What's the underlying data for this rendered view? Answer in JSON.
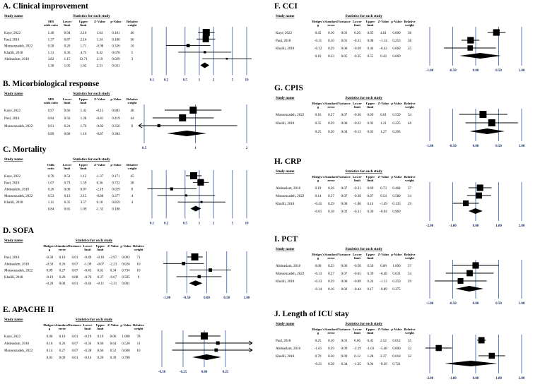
{
  "chart_data": [
    {
      "type": "forest",
      "title": "A. Clinical improvement",
      "hdr": {
        "study": "Study name",
        "stats": "Statistics for each study"
      },
      "columns": [
        "MH\nodds ratio",
        "Lower\nlimit",
        "Upper\nlimit",
        "Z-Value",
        "p-Value",
        "Relative\nweight"
      ],
      "rows": [
        {
          "study": "Kaye, 2022",
          "values": [
            "1.40",
            "0.94",
            "2.10",
            "1.64",
            "0.101",
            "46"
          ],
          "est": 1.4,
          "lo": 0.94,
          "hi": 2.1
        },
        {
          "study": "Paul, 2018",
          "values": [
            "1.37",
            "0.87",
            "2.16",
            "1.34",
            "0.180",
            "36"
          ],
          "est": 1.37,
          "lo": 0.87,
          "hi": 2.16
        },
        {
          "study": "Monsenzadeh, 2022",
          "values": [
            "0.58",
            "0.20",
            "1.71",
            "-0.98",
            "0.326",
            "10"
          ],
          "est": 0.58,
          "lo": 0.2,
          "hi": 1.71
        },
        {
          "study": "Khalili, 2018",
          "values": [
            "1.31",
            "0.36",
            "4.73",
            "0.42",
            "0.678",
            "5"
          ],
          "est": 1.31,
          "lo": 0.36,
          "hi": 4.73
        },
        {
          "study": "Abdeaslam, 2018",
          "values": [
            "3.82",
            "1.15",
            "12.71",
            "2.19",
            "0.029",
            "3"
          ],
          "est": 3.82,
          "lo": 1.15,
          "hi": 12.71
        }
      ],
      "pooled": {
        "values": [
          "1.30",
          "1.05",
          "1.62",
          "2.31",
          "0.021",
          ""
        ],
        "est": 1.3,
        "lo": 1.05,
        "hi": 1.62
      },
      "axis": {
        "log": true,
        "min": 0.1,
        "max": 10,
        "ticks": [
          0.1,
          0.2,
          0.5,
          1,
          2,
          5,
          10
        ],
        "tick_labels": [
          "0.1",
          "0.2",
          "0.5",
          "1",
          "2",
          "5",
          "10"
        ]
      }
    },
    {
      "type": "forest",
      "title": "B. Micorbiological response",
      "hdr": {
        "study": "Study name",
        "stats": "Statistics for each study"
      },
      "columns": [
        "MH\nodds ratio",
        "Lower\nlimit",
        "Upper\nlimit",
        "Z-Value",
        "p-Value",
        "Relative\nweight"
      ],
      "rows": [
        {
          "study": "Kaye, 2022",
          "values": [
            "0.97",
            "0.66",
            "1.42",
            "-0.15",
            "0.883",
            "48"
          ],
          "est": 0.97,
          "lo": 0.66,
          "hi": 1.42
        },
        {
          "study": "Paul, 2018",
          "values": [
            "0.84",
            "0.56",
            "1.28",
            "-0.81",
            "0.419",
            "44"
          ],
          "est": 0.84,
          "lo": 0.56,
          "hi": 1.28
        },
        {
          "study": "Monsenzadeh, 2022",
          "values": [
            "0.61",
            "0.21",
            "1.76",
            "-0.92",
            "0.356",
            "8"
          ],
          "est": 0.61,
          "lo": 0.21,
          "hi": 1.76
        }
      ],
      "pooled": {
        "values": [
          "0.89",
          "0.68",
          "1.16",
          "-0.87",
          "0.384",
          ""
        ],
        "est": 0.89,
        "lo": 0.68,
        "hi": 1.16
      },
      "axis": {
        "log": true,
        "min": 0.5,
        "max": 2,
        "ticks": [
          0.5,
          1,
          2
        ],
        "tick_labels": [
          "0.5",
          "1",
          "2"
        ]
      }
    },
    {
      "type": "forest",
      "title": "C. Mortality",
      "hdr": {
        "study": "Study name",
        "stats": "Statistics for each study"
      },
      "columns": [
        "Odds\nratio",
        "Lower\nlimit",
        "Upper\nlimit",
        "Z-Value",
        "p-Value",
        "Relative\nweight"
      ],
      "rows": [
        {
          "study": "Kaye, 2022",
          "values": [
            "0.76",
            "0.52",
            "1.12",
            "-1.37",
            "0.171",
            "45"
          ],
          "est": 0.76,
          "lo": 0.52,
          "hi": 1.12
        },
        {
          "study": "Paul, 2018",
          "values": [
            "1.07",
            "0.73",
            "1.59",
            "0.36",
            "0.722",
            "38"
          ],
          "est": 1.07,
          "lo": 0.73,
          "hi": 1.59
        },
        {
          "study": "Abdeaslam, 2018",
          "values": [
            "0.26",
            "0.08",
            "0.87",
            "-2.19",
            "0.029",
            "8"
          ],
          "est": 0.26,
          "lo": 0.08,
          "hi": 0.87
        },
        {
          "study": "Monsenzadeh, 2022",
          "values": [
            "0.53",
            "0.13",
            "2.15",
            "-0.88",
            "0.377",
            "4"
          ],
          "est": 0.53,
          "lo": 0.13,
          "hi": 2.15
        },
        {
          "study": "Khalili, 2018",
          "values": [
            "1.11",
            "0.35",
            "3.57",
            "0.18",
            "0.859",
            "4"
          ],
          "est": 1.11,
          "lo": 0.35,
          "hi": 3.57
        }
      ],
      "pooled": {
        "values": [
          "0.84",
          "0.65",
          "1.09",
          "-1.32",
          "0.188",
          ""
        ],
        "est": 0.84,
        "lo": 0.65,
        "hi": 1.09
      },
      "axis": {
        "log": true,
        "min": 0.1,
        "max": 10,
        "ticks": [
          0.1,
          0.2,
          0.5,
          1,
          2,
          5,
          10
        ],
        "tick_labels": [
          "0.1",
          "0.2",
          "0.5",
          "1",
          "2",
          "5",
          "10"
        ]
      }
    },
    {
      "type": "forest",
      "title": "D. SOFA",
      "hdr": {
        "study": "Study name",
        "stats": "Statistics for each study"
      },
      "columns": [
        "Hedges's\ng",
        "Standard\nerror",
        "Variance",
        "Lower\nlimit",
        "Upper\nlimit",
        "Z-Value",
        "p-Value",
        "Relative\nweight"
      ],
      "rows": [
        {
          "study": "Paul, 2018",
          "values": [
            "-0.30",
            "0.10",
            "0.01",
            "-0.49",
            "-0.10",
            "-2.97",
            "0.003",
            "71"
          ],
          "est": -0.3,
          "lo": -0.49,
          "hi": -0.1
        },
        {
          "study": "Abdeaslam, 2018",
          "values": [
            "-0.58",
            "0.26",
            "0.07",
            "-1.09",
            "-0.07",
            "-2.23",
            "0.026",
            "10"
          ],
          "est": -0.58,
          "lo": -1.09,
          "hi": -0.07
        },
        {
          "study": "Monsenzadeh, 2022",
          "values": [
            "0.09",
            "0.27",
            "0.07",
            "-0.43",
            "0.61",
            "0.34",
            "0.734",
            "10"
          ],
          "est": 0.09,
          "lo": -0.43,
          "hi": 0.61
        },
        {
          "study": "Khalili, 2018",
          "values": [
            "-0.19",
            "0.29",
            "0.08",
            "-0.76",
            "0.37",
            "-0.67",
            "0.505",
            "9"
          ],
          "est": -0.19,
          "lo": -0.76,
          "hi": 0.37
        }
      ],
      "pooled": {
        "values": [
          "-0.28",
          "0.08",
          "0.01",
          "-0.44",
          "-0.11",
          "-3.31",
          "0.001",
          ""
        ],
        "est": -0.28,
        "lo": -0.44,
        "hi": -0.11
      },
      "axis": {
        "log": false,
        "min": -1,
        "max": 1,
        "ticks": [
          -1,
          -0.5,
          0,
          0.5,
          1
        ],
        "tick_labels": [
          "-1.00",
          "-0.50",
          "0.00",
          "0.50",
          "1.00"
        ]
      }
    },
    {
      "type": "forest",
      "title": "E. APACHE II",
      "hdr": {
        "study": "Study name",
        "stats": "Statistics for each study"
      },
      "columns": [
        "Hedges's\ng",
        "Standard\nerror",
        "Variance",
        "Lower\nlimit",
        "Upper\nlimit",
        "Z-Value",
        "p-Value",
        "Relative\nweight"
      ],
      "rows": [
        {
          "study": "Kaye, 2022",
          "values": [
            "0.00",
            "0.10",
            "0.01",
            "-0.19",
            "0.19",
            "0.00",
            "1.000",
            "78"
          ],
          "est": 0.0,
          "lo": -0.19,
          "hi": 0.19
        },
        {
          "study": "Abdeaslam, 2018",
          "values": [
            "0.16",
            "0.26",
            "0.07",
            "-0.34",
            "0.66",
            "0.64",
            "0.520",
            "11"
          ],
          "est": 0.16,
          "lo": -0.34,
          "hi": 0.66
        },
        {
          "study": "Monsenzadeh, 2022",
          "values": [
            "0.14",
            "0.27",
            "0.07",
            "-0.38",
            "0.66",
            "0.52",
            "0.600",
            "10"
          ],
          "est": 0.14,
          "lo": -0.38,
          "hi": 0.66
        }
      ],
      "pooled": {
        "values": [
          "0.03",
          "0.09",
          "0.01",
          "-0.14",
          "0.20",
          "0.39",
          "0.700",
          ""
        ],
        "est": 0.03,
        "lo": -0.14,
        "hi": 0.2
      },
      "axis": {
        "log": false,
        "min": -0.5,
        "max": 0.5,
        "ticks": [
          -0.5,
          -0.25,
          0,
          0.25
        ],
        "tick_labels": [
          "-0.50",
          "-0.25",
          "0.00",
          "0.25"
        ]
      }
    },
    {
      "type": "forest",
      "title": "F. CCI",
      "hdr": {
        "study": "Study name",
        "stats": "Statistics for each study"
      },
      "columns": [
        "Hedges's\ng",
        "Standard\nerror",
        "Variance",
        "Lower\nlimit",
        "Upper\nlimit",
        "Z-Value",
        "p-Value",
        "Relative\nweight"
      ],
      "rows": [
        {
          "study": "Kaye, 2022",
          "values": [
            "0.45",
            "0.10",
            "0.01",
            "0.26",
            "0.65",
            "4.61",
            "0.000",
            "38"
          ],
          "est": 0.45,
          "lo": 0.26,
          "hi": 0.65
        },
        {
          "study": "Paul, 2018",
          "values": [
            "-0.11",
            "0.10",
            "0.01",
            "-0.31",
            "0.08",
            "-1.14",
            "0.253",
            "38"
          ],
          "est": -0.11,
          "lo": -0.31,
          "hi": 0.08
        },
        {
          "study": "Khalili, 2018",
          "values": [
            "-0.12",
            "0.29",
            "0.08",
            "-0.69",
            "0.44",
            "-0.43",
            "0.669",
            "25"
          ],
          "est": -0.12,
          "lo": -0.69,
          "hi": 0.44
        }
      ],
      "pooled": {
        "values": [
          "0.10",
          "0.23",
          "0.05",
          "-0.35",
          "0.55",
          "0.43",
          "0.669",
          ""
        ],
        "est": 0.1,
        "lo": -0.35,
        "hi": 0.55
      },
      "axis": {
        "log": false,
        "min": -1,
        "max": 1,
        "ticks": [
          -1,
          -0.5,
          0,
          0.5,
          1
        ],
        "tick_labels": [
          "-1.00",
          "-0.50",
          "0.00",
          "0.50",
          "1.00"
        ]
      }
    },
    {
      "type": "forest",
      "title": "G. CPIS",
      "hdr": {
        "study": "Study name",
        "stats": "Statistics for each study"
      },
      "columns": [
        "Hedges's\ng",
        "Standard\nerror",
        "Variance",
        "Lower\nlimit",
        "Upper\nlimit",
        "Z-Value",
        "p-Value",
        "Relative\nweight"
      ],
      "rows": [
        {
          "study": "Monsenzadeh, 2022",
          "values": [
            "0.16",
            "0.27",
            "0.07",
            "-0.36",
            "0.69",
            "0.61",
            "0.539",
            "54"
          ],
          "est": 0.16,
          "lo": -0.36,
          "hi": 0.69
        },
        {
          "study": "Khalili, 2018",
          "values": [
            "0.35",
            "0.29",
            "0.08",
            "-0.22",
            "0.92",
            "1.21",
            "0.225",
            "46"
          ],
          "est": 0.35,
          "lo": -0.22,
          "hi": 0.92
        }
      ],
      "pooled": {
        "values": [
          "0.25",
          "0.20",
          "0.04",
          "-0.13",
          "0.63",
          "1.27",
          "0.203",
          ""
        ],
        "est": 0.25,
        "lo": -0.13,
        "hi": 0.63
      },
      "axis": {
        "log": false,
        "min": -1,
        "max": 1,
        "ticks": [
          -1,
          -0.5,
          0,
          0.5,
          1
        ],
        "tick_labels": [
          "-1.00",
          "-0.50",
          "0.00",
          "0.50",
          "1.00"
        ]
      }
    },
    {
      "type": "forest",
      "title": "H. CRP",
      "hdr": {
        "study": "Study name",
        "stats": "Statistics for each study"
      },
      "columns": [
        "Hedges's\ng",
        "Standard\nerror",
        "Variance",
        "Lower\nlimit",
        "Upper\nlimit",
        "Z-Value",
        "p-Value",
        "Relative\nweight"
      ],
      "rows": [
        {
          "study": "Abdeaslam, 2018",
          "values": [
            "0.19",
            "0.26",
            "0.07",
            "-0.31",
            "0.69",
            "0.73",
            "0.464",
            "37"
          ],
          "est": 0.19,
          "lo": -0.31,
          "hi": 0.69
        },
        {
          "study": "Monsenzadeh, 2022",
          "values": [
            "0.14",
            "0.27",
            "0.07",
            "-0.38",
            "0.67",
            "0.54",
            "0.589",
            "34"
          ],
          "est": 0.14,
          "lo": -0.38,
          "hi": 0.67
        },
        {
          "study": "Khalili, 2018",
          "values": [
            "-0.43",
            "0.29",
            "0.08",
            "-1.00",
            "0.14",
            "-1.49",
            "0.135",
            "29"
          ],
          "est": -0.43,
          "lo": -1.0,
          "hi": 0.14
        }
      ],
      "pooled": {
        "values": [
          "-0.01",
          "0.18",
          "0.02",
          "-0.31",
          "0.30",
          "-0.04",
          "0.969",
          ""
        ],
        "est": -0.01,
        "lo": -0.31,
        "hi": 0.3
      },
      "axis": {
        "log": false,
        "min": -2,
        "max": 2,
        "ticks": [
          -2,
          -1,
          0,
          1,
          2
        ],
        "tick_labels": [
          "-2.00",
          "-1.00",
          "0.00",
          "1.00",
          "2.00"
        ]
      }
    },
    {
      "type": "forest",
      "title": "I. PCT",
      "hdr": {
        "study": "Study name",
        "stats": "Statistics for each study"
      },
      "columns": [
        "Hedges's\ng",
        "Standard\nerror",
        "Variance",
        "Lower\nlimit",
        "Upper\nlimit",
        "Z-Value",
        "p-Value",
        "Relative\nweight"
      ],
      "rows": [
        {
          "study": "Abdeaslam, 2018",
          "values": [
            "0.00",
            "0.25",
            "0.06",
            "-0.50",
            "0.50",
            "0.00",
            "1.000",
            "37"
          ],
          "est": 0.0,
          "lo": -0.5,
          "hi": 0.5
        },
        {
          "study": "Monsenzadeh, 2022",
          "values": [
            "-0.13",
            "0.27",
            "0.07",
            "-0.65",
            "0.39",
            "-0.48",
            "0.631",
            "34"
          ],
          "est": -0.13,
          "lo": -0.65,
          "hi": 0.39
        },
        {
          "study": "Khalili, 2018",
          "values": [
            "-0.33",
            "0.29",
            "0.08",
            "-0.89",
            "0.24",
            "-1.13",
            "0.259",
            "29"
          ],
          "est": -0.33,
          "lo": -0.89,
          "hi": 0.24
        }
      ],
      "pooled": {
        "values": [
          "-0.14",
          "0.16",
          "0.02",
          "-0.44",
          "0.17",
          "-0.89",
          "0.375",
          ""
        ],
        "est": -0.14,
        "lo": -0.44,
        "hi": 0.17
      },
      "axis": {
        "log": false,
        "min": -1,
        "max": 1,
        "ticks": [
          -1,
          -0.5,
          0,
          0.5,
          1
        ],
        "tick_labels": [
          "-1.00",
          "-0.50",
          "0.00",
          "0.50",
          "1.00"
        ]
      }
    },
    {
      "type": "forest",
      "title": "J. Length of ICU stay",
      "hdr": {
        "study": "Study name",
        "stats": "Statistics for each study"
      },
      "columns": [
        "Hedges's\ng",
        "Standard\nerror",
        "Variance",
        "Lower\nlimit",
        "Upper\nlimit",
        "Z-Value",
        "p-Value",
        "Relative\nweight"
      ],
      "rows": [
        {
          "study": "Paul, 2018",
          "values": [
            "0.25",
            "0.10",
            "0.01",
            "0.06",
            "0.45",
            "2.52",
            "0.012",
            "35"
          ],
          "est": 0.25,
          "lo": 0.06,
          "hi": 0.45
        },
        {
          "study": "Abdeaslam, 2018",
          "values": [
            "-1.61",
            "0.29",
            "0.09",
            "-2.19",
            "-1.03",
            "-5.48",
            "0.000",
            "32"
          ],
          "est": -1.61,
          "lo": -2.19,
          "hi": -1.03
        },
        {
          "study": "Khalili, 2018",
          "values": [
            "0.70",
            "0.30",
            "0.09",
            "0.12",
            "1.28",
            "2.37",
            "0.018",
            "32"
          ],
          "est": 0.7,
          "lo": 0.12,
          "hi": 1.28
        }
      ],
      "pooled": {
        "values": [
          "-0.21",
          "0.58",
          "0.34",
          "-1.35",
          "0.94",
          "-0.36",
          "0.721",
          ""
        ],
        "est": -0.21,
        "lo": -1.35,
        "hi": 0.94
      },
      "axis": {
        "log": false,
        "min": -2,
        "max": 2,
        "ticks": [
          -2,
          -1,
          0,
          1,
          2
        ],
        "tick_labels": [
          "-2.00",
          "-1.00",
          "0.00",
          "1.00",
          "2.00"
        ]
      }
    }
  ]
}
